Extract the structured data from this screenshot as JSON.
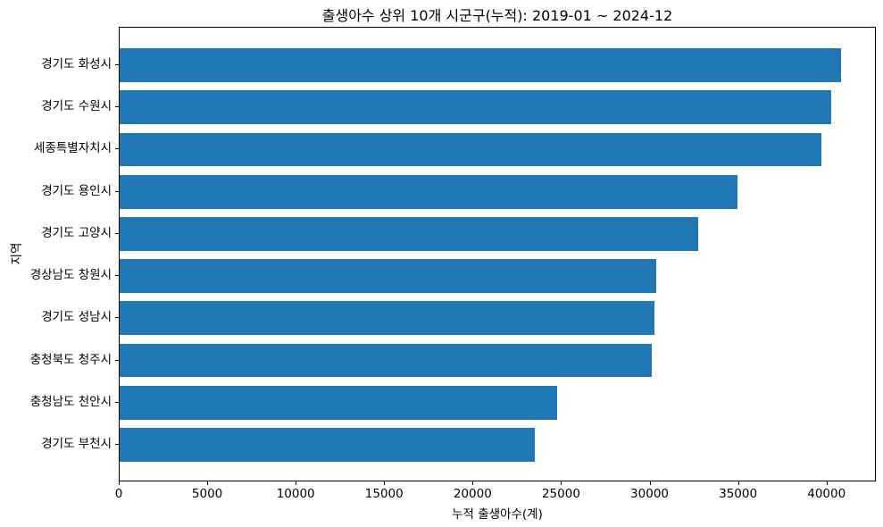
{
  "chart_data": {
    "type": "bar",
    "orientation": "horizontal",
    "title": "출생아수 상위 10개 시군구(누적): 2019-01 ~ 2024-12",
    "xlabel": "누적 출생아수(계)",
    "ylabel": "지역",
    "categories": [
      "경기도 화성시",
      "경기도 수원시",
      "세종특별자치시",
      "경기도 용인시",
      "경기도 고양시",
      "경상남도 창원시",
      "경기도 성남시",
      "충청북도 청주시",
      "충청남도 천안시",
      "경기도 부천시"
    ],
    "values": [
      40750,
      40200,
      39650,
      34900,
      32700,
      30350,
      30250,
      30050,
      24750,
      23450
    ],
    "xticks": [
      0,
      5000,
      10000,
      15000,
      20000,
      25000,
      30000,
      35000,
      40000
    ],
    "xlim": [
      0,
      42790
    ],
    "bar_color": "#1f77b4",
    "axis_color": "#000000",
    "background_color": "#ffffff",
    "grid": false,
    "legend": null
  }
}
